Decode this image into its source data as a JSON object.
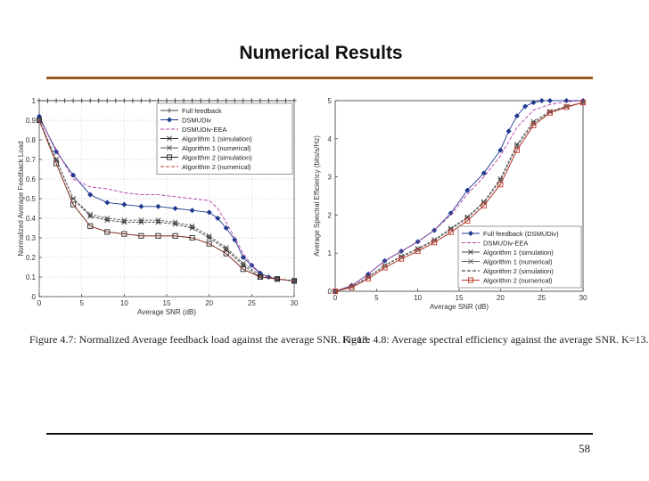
{
  "slide": {
    "title": "Numerical Results",
    "page_number": "58",
    "rule_color": "#9c5a1f"
  },
  "chart_data": [
    {
      "type": "line",
      "caption": "Figure 4.7: Normalized Average feedback load against the average SNR. K=13.",
      "xlabel": "Average SNR (dB)",
      "ylabel": "Normalized Average Feedback Load",
      "xlim": [
        0,
        30
      ],
      "ylim": [
        0,
        1
      ],
      "xticks": [
        "0",
        "5",
        "10",
        "15",
        "20",
        "25",
        "30"
      ],
      "yticks": [
        "0",
        "0.1",
        "0.2",
        "0.3",
        "0.4",
        "0.5",
        "0.6",
        "0.7",
        "0.8",
        "0.9",
        "1"
      ],
      "grid": true,
      "legend_position": "top-right",
      "series": [
        {
          "name": "Full feedback",
          "color": "#444444",
          "marker": "plus",
          "x": [
            0,
            1,
            2,
            3,
            4,
            5,
            6,
            7,
            8,
            9,
            10,
            11,
            12,
            13,
            14,
            15,
            16,
            17,
            18,
            19,
            20,
            21,
            22,
            23,
            24,
            25,
            26,
            27,
            28,
            29,
            30
          ],
          "y": [
            1,
            1,
            1,
            1,
            1,
            1,
            1,
            1,
            1,
            1,
            1,
            1,
            1,
            1,
            1,
            1,
            1,
            1,
            1,
            1,
            1,
            1,
            1,
            1,
            1,
            1,
            1,
            1,
            1,
            1,
            1
          ]
        },
        {
          "name": "DSMUDiv",
          "color": "#1f3b8f",
          "marker": "diamond",
          "x": [
            0,
            2,
            4,
            6,
            8,
            10,
            12,
            14,
            16,
            18,
            20,
            21,
            22,
            23,
            24,
            25,
            26,
            27,
            28,
            30
          ],
          "y": [
            0.92,
            0.74,
            0.62,
            0.52,
            0.48,
            0.47,
            0.46,
            0.46,
            0.45,
            0.44,
            0.43,
            0.4,
            0.35,
            0.29,
            0.2,
            0.16,
            0.12,
            0.1,
            0.09,
            0.08
          ]
        },
        {
          "name": "DSMUDiv-EEA",
          "color": "#b23aa6",
          "marker": "none",
          "x": [
            0,
            2,
            4,
            6,
            8,
            10,
            12,
            14,
            16,
            18,
            20,
            21,
            22,
            23,
            24,
            25,
            26,
            28,
            30
          ],
          "y": [
            0.91,
            0.75,
            0.6,
            0.56,
            0.55,
            0.53,
            0.52,
            0.52,
            0.51,
            0.5,
            0.49,
            0.45,
            0.38,
            0.3,
            0.22,
            0.16,
            0.11,
            0.09,
            0.08
          ]
        },
        {
          "name": "Algorithm 1 (simulation)",
          "color": "#333333",
          "marker": "star",
          "x": [
            0,
            2,
            4,
            6,
            8,
            10,
            12,
            14,
            16,
            18,
            20,
            22,
            24,
            26,
            28,
            30
          ],
          "y": [
            0.9,
            0.7,
            0.5,
            0.41,
            0.39,
            0.38,
            0.38,
            0.38,
            0.37,
            0.35,
            0.3,
            0.24,
            0.16,
            0.1,
            0.09,
            0.08
          ]
        },
        {
          "name": "Algorithm 1 (numerical)",
          "color": "#555555",
          "marker": "star",
          "x": [
            0,
            2,
            4,
            6,
            8,
            10,
            12,
            14,
            16,
            18,
            20,
            22,
            24,
            26,
            28,
            30
          ],
          "y": [
            0.9,
            0.7,
            0.5,
            0.42,
            0.4,
            0.39,
            0.39,
            0.39,
            0.38,
            0.36,
            0.31,
            0.25,
            0.17,
            0.11,
            0.09,
            0.08
          ]
        },
        {
          "name": "Algorithm 2 (simulation)",
          "color": "#222222",
          "marker": "square",
          "x": [
            0,
            2,
            4,
            6,
            8,
            10,
            12,
            14,
            16,
            18,
            20,
            22,
            24,
            26,
            28,
            30
          ],
          "y": [
            0.9,
            0.68,
            0.47,
            0.36,
            0.33,
            0.32,
            0.31,
            0.31,
            0.31,
            0.3,
            0.27,
            0.22,
            0.14,
            0.1,
            0.09,
            0.08
          ]
        },
        {
          "name": "Algorithm 2 (numerical)",
          "color": "#c0392b",
          "marker": "none",
          "x": [
            0,
            2,
            4,
            6,
            8,
            10,
            12,
            14,
            16,
            18,
            20,
            22,
            24,
            26,
            28,
            30
          ],
          "y": [
            0.9,
            0.68,
            0.47,
            0.36,
            0.33,
            0.32,
            0.31,
            0.31,
            0.31,
            0.3,
            0.27,
            0.22,
            0.14,
            0.1,
            0.09,
            0.08
          ]
        }
      ]
    },
    {
      "type": "line",
      "caption": "Figure 4.8: Average spectral efficiency against the average SNR. K=13.",
      "xlabel": "Average SNR (dB)",
      "ylabel": "Average Spectral Efficiency (bits/s/Hz)",
      "xlim": [
        0,
        30
      ],
      "ylim": [
        0,
        5
      ],
      "xticks": [
        "0",
        "5",
        "10",
        "15",
        "20",
        "25",
        "30"
      ],
      "yticks": [
        "0",
        "1",
        "2",
        "3",
        "4",
        "5"
      ],
      "grid": false,
      "legend_position": "bottom-right",
      "series": [
        {
          "name": "Full feedback (DSMUDiv)",
          "color": "#1f3b8f",
          "marker": "diamond",
          "x": [
            0,
            2,
            4,
            6,
            8,
            10,
            12,
            14,
            16,
            18,
            20,
            21,
            22,
            23,
            24,
            25,
            26,
            28,
            30
          ],
          "y": [
            0,
            0.15,
            0.45,
            0.8,
            1.05,
            1.3,
            1.6,
            2.05,
            2.65,
            3.1,
            3.7,
            4.2,
            4.6,
            4.85,
            4.95,
            5,
            5,
            5,
            5
          ]
        },
        {
          "name": "DSMUDiv-EEA",
          "color": "#b23aa6",
          "marker": "none",
          "x": [
            0,
            2,
            4,
            6,
            8,
            10,
            12,
            14,
            16,
            18,
            20,
            22,
            24,
            26,
            28,
            30
          ],
          "y": [
            0,
            0.15,
            0.45,
            0.8,
            1.05,
            1.3,
            1.6,
            2.0,
            2.55,
            3.0,
            3.55,
            4.3,
            4.75,
            4.9,
            4.97,
            5
          ]
        },
        {
          "name": "Algorithm 1 (simulation)",
          "color": "#444444",
          "marker": "star",
          "x": [
            0,
            2,
            4,
            6,
            8,
            10,
            12,
            14,
            16,
            18,
            20,
            22,
            24,
            26,
            28,
            30
          ],
          "y": [
            0,
            0.12,
            0.38,
            0.68,
            0.92,
            1.12,
            1.35,
            1.65,
            1.95,
            2.35,
            2.95,
            3.85,
            4.45,
            4.72,
            4.85,
            4.95
          ]
        },
        {
          "name": "Algorithm 1 (numerical)",
          "color": "#666666",
          "marker": "star",
          "x": [
            0,
            2,
            4,
            6,
            8,
            10,
            12,
            14,
            16,
            18,
            20,
            22,
            24,
            26,
            28,
            30
          ],
          "y": [
            0,
            0.12,
            0.37,
            0.67,
            0.9,
            1.1,
            1.33,
            1.62,
            1.92,
            2.32,
            2.9,
            3.8,
            4.4,
            4.7,
            4.84,
            4.95
          ]
        },
        {
          "name": "Algorithm 2 (simulation)",
          "color": "#222222",
          "marker": "none",
          "x": [
            0,
            2,
            4,
            6,
            8,
            10,
            12,
            14,
            16,
            18,
            20,
            22,
            24,
            26,
            28,
            30
          ],
          "y": [
            0,
            0.1,
            0.33,
            0.62,
            0.85,
            1.05,
            1.28,
            1.55,
            1.85,
            2.25,
            2.8,
            3.7,
            4.35,
            4.68,
            4.83,
            4.95
          ]
        },
        {
          "name": "Algorithm 2 (numerical)",
          "color": "#c0392b",
          "marker": "square",
          "x": [
            0,
            2,
            4,
            6,
            8,
            10,
            12,
            14,
            16,
            18,
            20,
            22,
            24,
            26,
            28,
            30
          ],
          "y": [
            0,
            0.1,
            0.33,
            0.62,
            0.85,
            1.05,
            1.28,
            1.55,
            1.85,
            2.25,
            2.8,
            3.7,
            4.35,
            4.68,
            4.83,
            4.95
          ]
        }
      ]
    }
  ]
}
